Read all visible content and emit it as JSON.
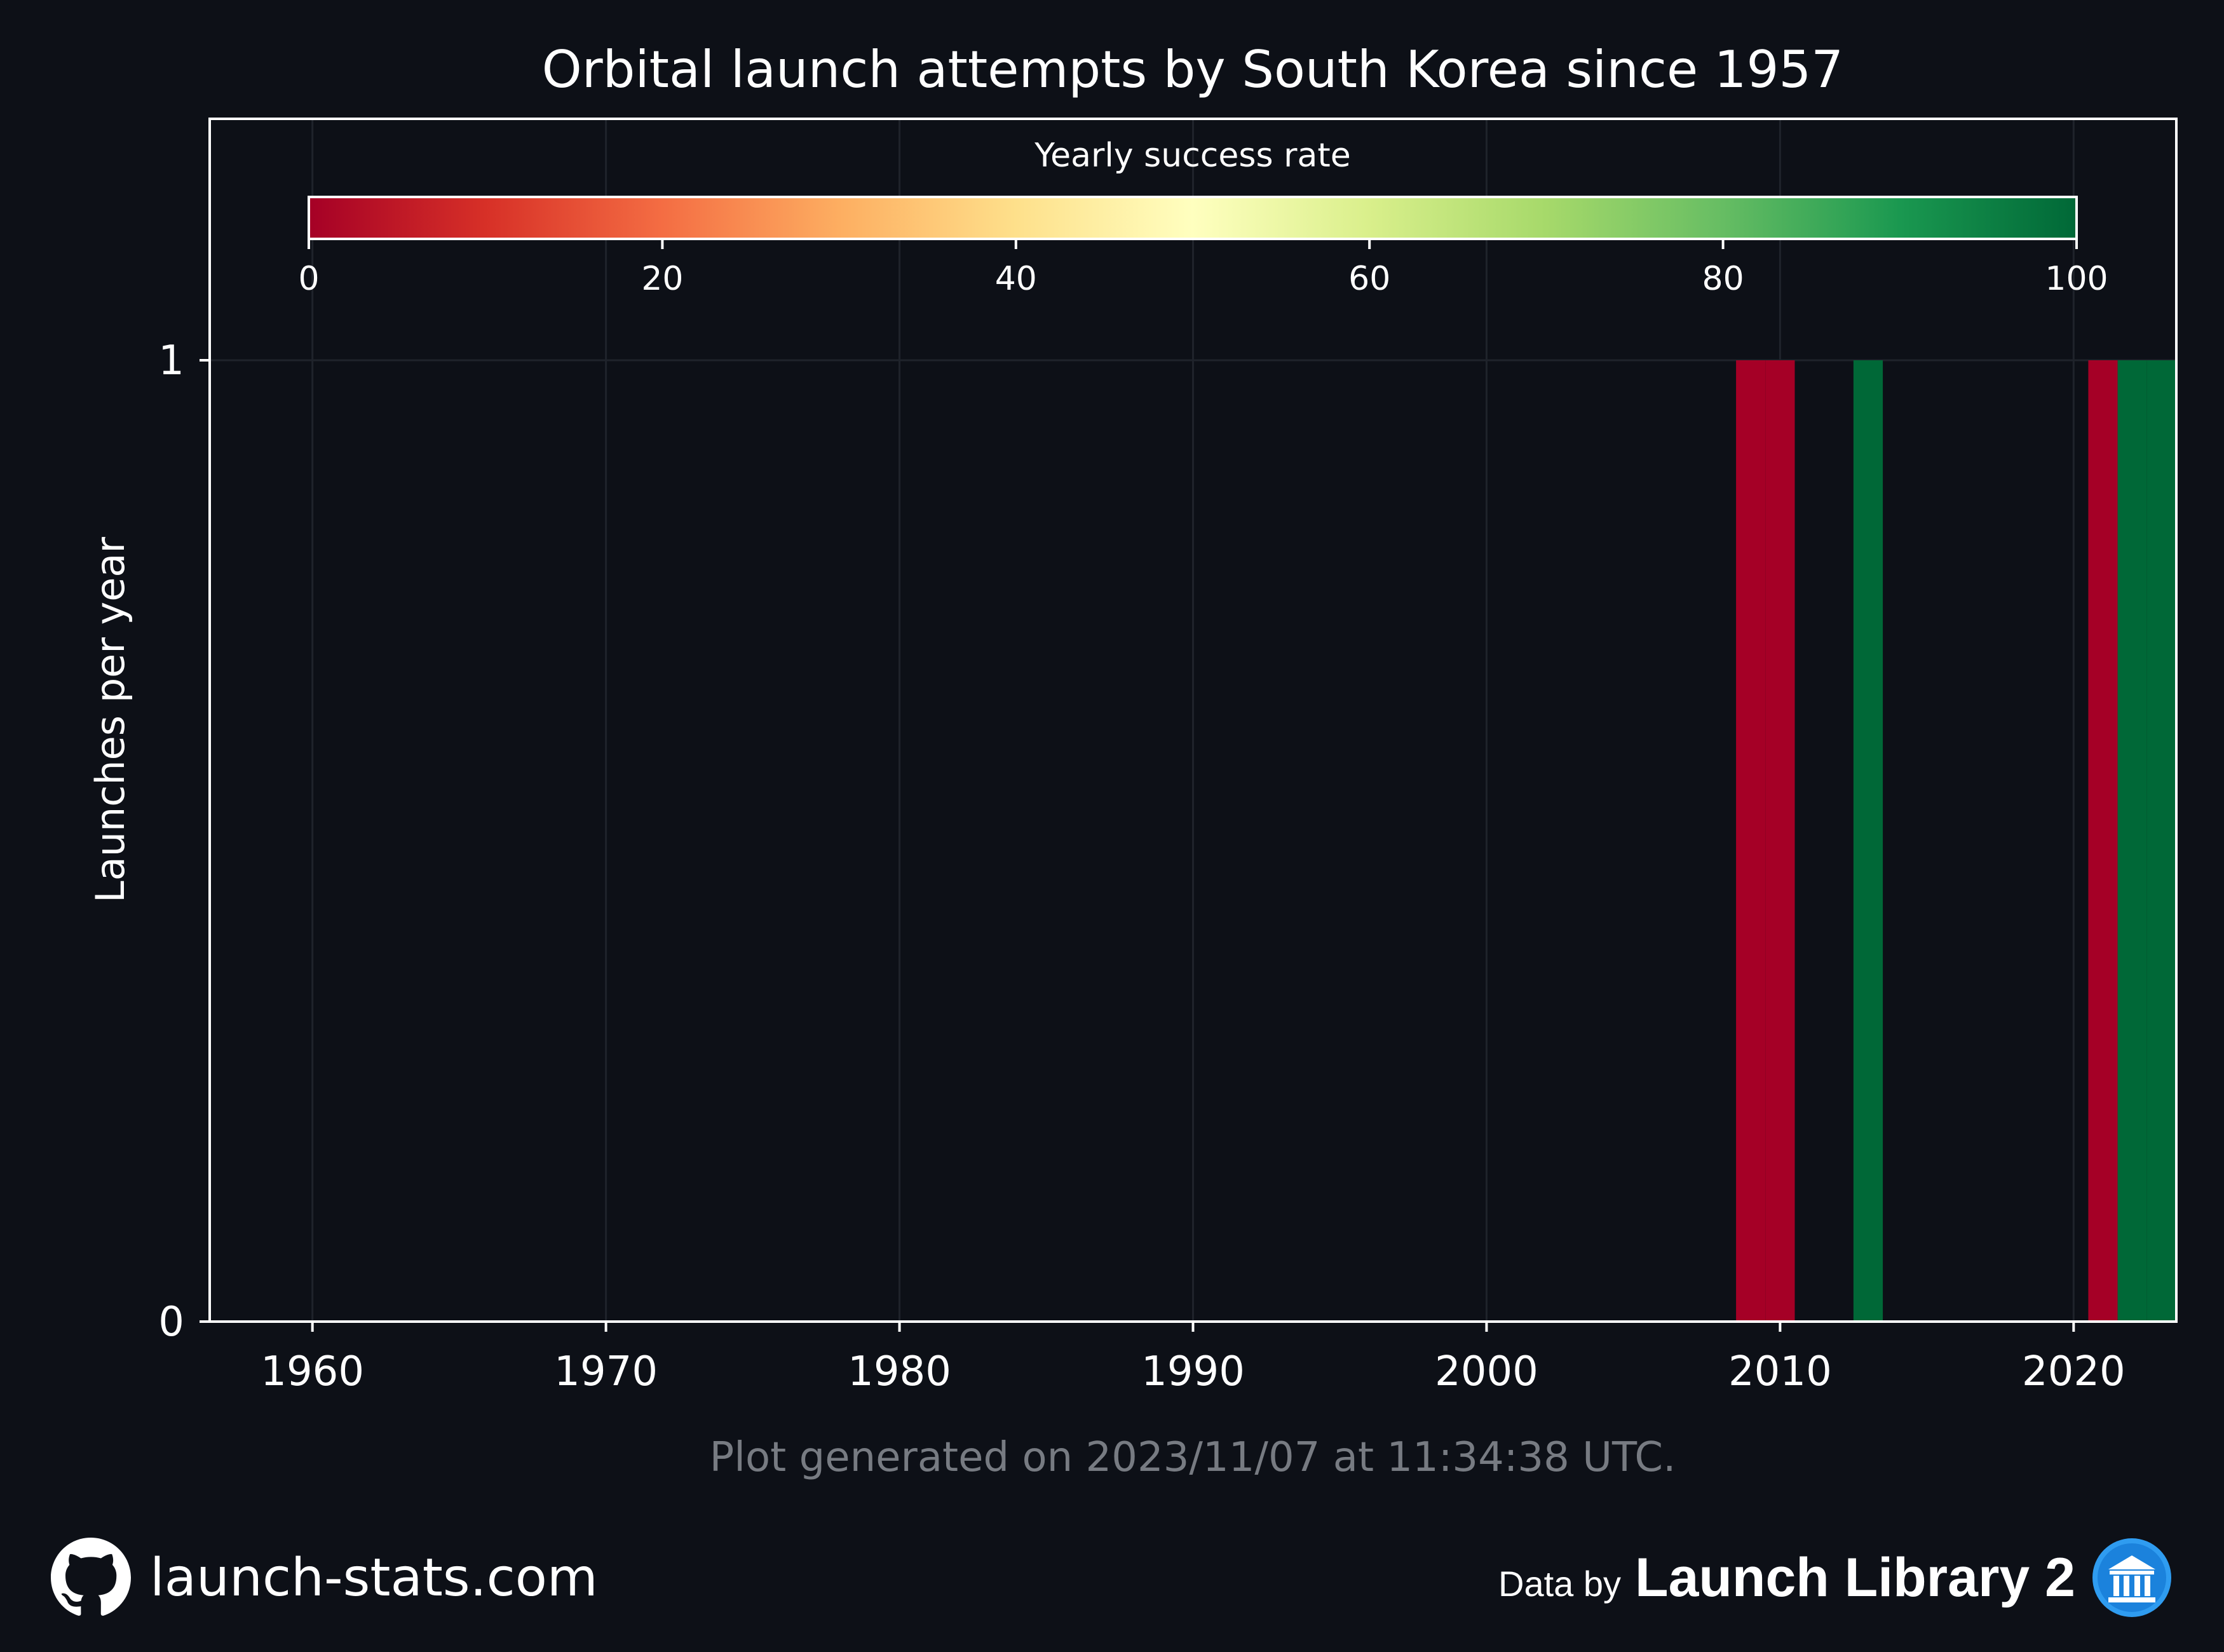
{
  "chart_data": {
    "type": "bar",
    "title": "Orbital launch attempts by South Korea since 1957",
    "xlabel": "",
    "ylabel": "Launches per year",
    "xlim": [
      1956.5,
      2023.5
    ],
    "ylim": [
      0,
      1
    ],
    "x_ticks": [
      1960,
      1970,
      1980,
      1990,
      2000,
      2010,
      2020
    ],
    "y_ticks": [
      0,
      1
    ],
    "grid": true,
    "bars": [
      {
        "year": 2009,
        "launches": 1,
        "success_rate": 0
      },
      {
        "year": 2010,
        "launches": 1,
        "success_rate": 0
      },
      {
        "year": 2013,
        "launches": 1,
        "success_rate": 100
      },
      {
        "year": 2021,
        "launches": 1,
        "success_rate": 0
      },
      {
        "year": 2022,
        "launches": 1,
        "success_rate": 100
      },
      {
        "year": 2023,
        "launches": 1,
        "success_rate": 100
      }
    ],
    "colorbar": {
      "label": "Yearly success rate",
      "ticks": [
        0,
        20,
        40,
        60,
        80,
        100
      ],
      "colormap_stops": [
        "#a50026",
        "#d73027",
        "#f46d43",
        "#fdae61",
        "#fee08b",
        "#ffffbf",
        "#d9ef8b",
        "#a6d96a",
        "#66bd63",
        "#1a9850",
        "#006837"
      ],
      "placement": "top-inside"
    },
    "colors": {
      "background": "#0d1017",
      "axes": "#ffffff",
      "grid": "#1f232b",
      "fail": "#a50026",
      "success": "#006837"
    }
  },
  "caption": "Plot generated on 2023/11/07 at 11:34:38 UTC.",
  "footer": {
    "site": "launch-stats.com",
    "site_icon": "github-icon",
    "data_prefix": "Data by",
    "data_source": "Launch Library 2",
    "data_icon": "launch-library-logo-icon"
  }
}
